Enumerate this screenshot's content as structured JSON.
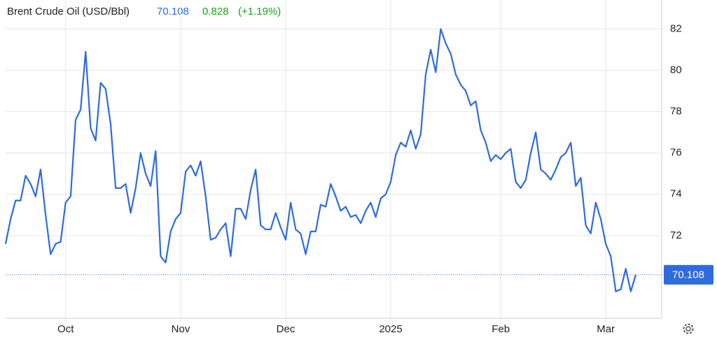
{
  "chart_data": {
    "type": "line",
    "title": "Brent Crude Oil (USD/Bbl)",
    "change": 0.828,
    "change_label": "(+1.19%)",
    "categories": [
      null,
      null,
      null,
      null,
      null,
      null,
      null,
      null,
      null,
      null,
      null,
      null,
      "Oct",
      null,
      null,
      null,
      null,
      null,
      null,
      null,
      null,
      null,
      null,
      null,
      null,
      null,
      null,
      null,
      null,
      null,
      null,
      null,
      null,
      null,
      null,
      "Nov",
      null,
      null,
      null,
      null,
      null,
      null,
      null,
      null,
      null,
      null,
      null,
      null,
      null,
      null,
      null,
      null,
      null,
      null,
      null,
      null,
      "Dec",
      null,
      null,
      null,
      null,
      null,
      null,
      null,
      null,
      null,
      null,
      null,
      null,
      null,
      null,
      null,
      null,
      null,
      null,
      null,
      null,
      "2025",
      null,
      null,
      null,
      null,
      null,
      null,
      null,
      null,
      null,
      null,
      null,
      null,
      null,
      null,
      null,
      null,
      null,
      null,
      null,
      null,
      null,
      "Feb",
      null,
      null,
      null,
      null,
      null,
      null,
      null,
      null,
      null,
      null,
      null,
      null,
      null,
      null,
      null,
      null,
      null,
      null,
      null,
      null,
      "Mar",
      null,
      null,
      null,
      null,
      null,
      null
    ],
    "series": [
      {
        "name": "Brent Crude Oil",
        "color": "#2f6bdc",
        "values": [
          71.6,
          72.8,
          73.7,
          73.7,
          74.9,
          74.5,
          73.9,
          75.2,
          73.0,
          71.1,
          71.6,
          71.7,
          73.6,
          73.9,
          77.6,
          78.1,
          80.9,
          77.2,
          76.6,
          79.4,
          79.1,
          77.4,
          74.3,
          74.3,
          74.5,
          73.1,
          74.3,
          76.0,
          75.0,
          74.4,
          76.1,
          71.0,
          70.7,
          72.2,
          72.8,
          73.1,
          75.1,
          75.4,
          74.9,
          75.6,
          73.9,
          71.8,
          71.9,
          72.3,
          72.6,
          71.0,
          73.3,
          73.3,
          72.8,
          74.2,
          75.2,
          72.5,
          72.3,
          72.3,
          73.1,
          72.4,
          71.8,
          73.6,
          72.3,
          72.1,
          71.1,
          72.2,
          72.2,
          73.5,
          73.4,
          74.5,
          73.9,
          73.2,
          73.4,
          72.9,
          73.0,
          72.6,
          73.2,
          73.6,
          72.9,
          73.8,
          74.0,
          74.6,
          75.9,
          76.5,
          76.3,
          77.1,
          76.2,
          76.9,
          79.8,
          81.0,
          79.9,
          82.0,
          81.3,
          80.8,
          79.8,
          79.3,
          79.0,
          78.3,
          78.5,
          77.1,
          76.5,
          75.6,
          75.9,
          75.7,
          76.0,
          76.2,
          74.6,
          74.3,
          74.7,
          76.0,
          77.0,
          75.2,
          75.0,
          74.7,
          75.2,
          75.8,
          76.0,
          76.5,
          74.4,
          74.8,
          72.5,
          72.1,
          73.6,
          72.8,
          71.6,
          71.0,
          69.3,
          69.4,
          70.4,
          69.3,
          70.108
        ]
      }
    ],
    "ylim": [
      68,
      83.4
    ],
    "yticks": [
      72,
      74,
      76,
      78,
      80,
      82
    ],
    "grid": true
  }
}
